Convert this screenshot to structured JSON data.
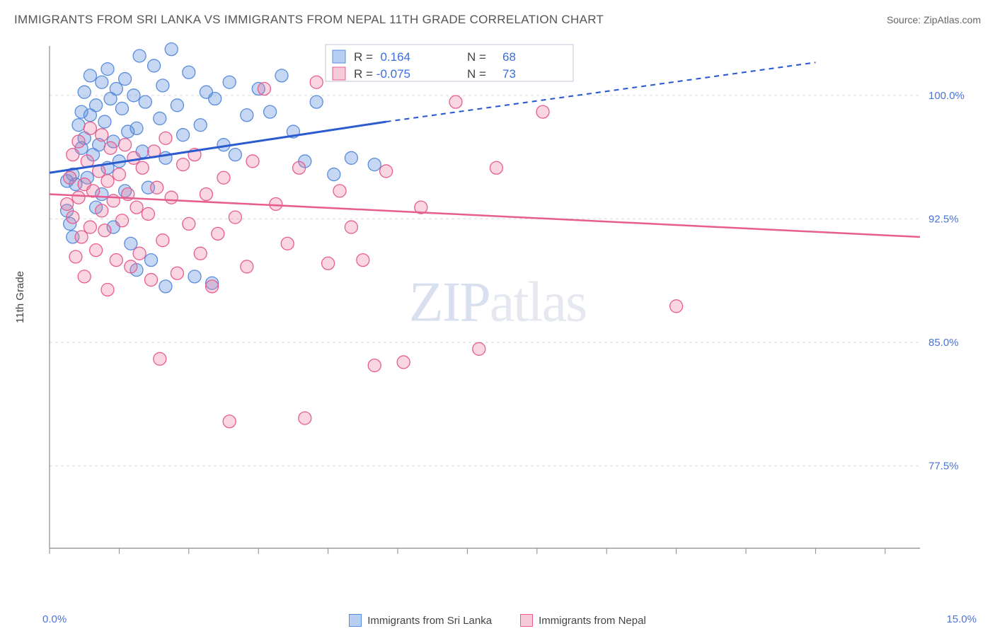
{
  "title": "IMMIGRANTS FROM SRI LANKA VS IMMIGRANTS FROM NEPAL 11TH GRADE CORRELATION CHART",
  "source_label": "Source: ",
  "source_name": "ZipAtlas.com",
  "y_axis_label": "11th Grade",
  "watermark": {
    "part1": "ZIP",
    "part2": "atlas"
  },
  "chart": {
    "type": "scatter-correlation",
    "plot_bg": "#ffffff",
    "grid_color": "#d9d9d9",
    "axis_color": "#888888",
    "tick_color": "#888888",
    "xlim": [
      0.0,
      15.0
    ],
    "ylim": [
      72.5,
      103.0
    ],
    "x_ticks": [
      0.0,
      1.2,
      2.4,
      3.6,
      4.8,
      6.0,
      7.2,
      8.4,
      9.6,
      10.8,
      12.0,
      13.2,
      14.4
    ],
    "y_ticks": [
      77.5,
      85.0,
      92.5,
      100.0
    ],
    "y_tick_labels": [
      "77.5%",
      "85.0%",
      "92.5%",
      "100.0%"
    ],
    "x_end_labels": [
      "0.0%",
      "15.0%"
    ],
    "y_tick_label_color": "#4a74d8",
    "x_tick_label_color": "#4a74d8",
    "series": [
      {
        "name": "Immigrants from Sri Lanka",
        "fill": "rgba(90,140,220,0.35)",
        "stroke": "#5a8cdc",
        "swatch_fill": "rgba(110,160,230,0.5)",
        "swatch_stroke": "#5a8cdc",
        "r_value": "0.164",
        "n_value": "68",
        "trend": {
          "color": "#2b5bcf",
          "width": 3,
          "y_start": 95.3,
          "y_end_solid": 98.4,
          "x_end_solid": 5.8,
          "y_end_dash": 102.0,
          "x_end_dash": 13.2
        },
        "points": [
          [
            0.3,
            94.8
          ],
          [
            0.3,
            93.0
          ],
          [
            0.4,
            95.2
          ],
          [
            0.35,
            92.2
          ],
          [
            0.4,
            91.4
          ],
          [
            0.45,
            94.6
          ],
          [
            0.5,
            98.2
          ],
          [
            0.55,
            99.0
          ],
          [
            0.55,
            96.8
          ],
          [
            0.6,
            100.2
          ],
          [
            0.6,
            97.4
          ],
          [
            0.65,
            95.0
          ],
          [
            0.7,
            101.2
          ],
          [
            0.7,
            98.8
          ],
          [
            0.75,
            96.4
          ],
          [
            0.8,
            99.4
          ],
          [
            0.8,
            93.2
          ],
          [
            0.85,
            97.0
          ],
          [
            0.9,
            100.8
          ],
          [
            0.9,
            94.0
          ],
          [
            0.95,
            98.4
          ],
          [
            1.0,
            101.6
          ],
          [
            1.0,
            95.6
          ],
          [
            1.05,
            99.8
          ],
          [
            1.1,
            97.2
          ],
          [
            1.1,
            92.0
          ],
          [
            1.15,
            100.4
          ],
          [
            1.2,
            96.0
          ],
          [
            1.25,
            99.2
          ],
          [
            1.3,
            101.0
          ],
          [
            1.3,
            94.2
          ],
          [
            1.35,
            97.8
          ],
          [
            1.4,
            91.0
          ],
          [
            1.45,
            100.0
          ],
          [
            1.5,
            98.0
          ],
          [
            1.5,
            89.4
          ],
          [
            1.55,
            102.4
          ],
          [
            1.6,
            96.6
          ],
          [
            1.65,
            99.6
          ],
          [
            1.7,
            94.4
          ],
          [
            1.75,
            90.0
          ],
          [
            1.8,
            101.8
          ],
          [
            1.9,
            98.6
          ],
          [
            1.95,
            100.6
          ],
          [
            2.0,
            96.2
          ],
          [
            2.0,
            88.4
          ],
          [
            2.1,
            102.8
          ],
          [
            2.2,
            99.4
          ],
          [
            2.3,
            97.6
          ],
          [
            2.4,
            101.4
          ],
          [
            2.5,
            89.0
          ],
          [
            2.6,
            98.2
          ],
          [
            2.7,
            100.2
          ],
          [
            2.8,
            88.6
          ],
          [
            2.85,
            99.8
          ],
          [
            3.0,
            97.0
          ],
          [
            3.1,
            100.8
          ],
          [
            3.2,
            96.4
          ],
          [
            3.4,
            98.8
          ],
          [
            3.6,
            100.4
          ],
          [
            3.8,
            99.0
          ],
          [
            4.0,
            101.2
          ],
          [
            4.2,
            97.8
          ],
          [
            4.4,
            96.0
          ],
          [
            4.6,
            99.6
          ],
          [
            4.9,
            95.2
          ],
          [
            5.2,
            96.2
          ],
          [
            5.6,
            95.8
          ]
        ]
      },
      {
        "name": "Immigrants from Nepal",
        "fill": "rgba(235,120,155,0.30)",
        "stroke": "#e75d8f",
        "swatch_fill": "rgba(240,150,180,0.5)",
        "swatch_stroke": "#e75d8f",
        "r_value": "-0.075",
        "n_value": "73",
        "trend": {
          "color": "#e75d8f",
          "width": 2.5,
          "y_start": 94.0,
          "y_end_solid": 91.4,
          "x_end_solid": 15.0
        },
        "points": [
          [
            0.3,
            93.4
          ],
          [
            0.35,
            95.0
          ],
          [
            0.4,
            92.6
          ],
          [
            0.4,
            96.4
          ],
          [
            0.45,
            90.2
          ],
          [
            0.5,
            93.8
          ],
          [
            0.5,
            97.2
          ],
          [
            0.55,
            91.4
          ],
          [
            0.6,
            94.6
          ],
          [
            0.6,
            89.0
          ],
          [
            0.65,
            96.0
          ],
          [
            0.7,
            92.0
          ],
          [
            0.7,
            98.0
          ],
          [
            0.75,
            94.2
          ],
          [
            0.8,
            90.6
          ],
          [
            0.85,
            95.4
          ],
          [
            0.9,
            93.0
          ],
          [
            0.9,
            97.6
          ],
          [
            0.95,
            91.8
          ],
          [
            1.0,
            94.8
          ],
          [
            1.0,
            88.2
          ],
          [
            1.05,
            96.8
          ],
          [
            1.1,
            93.6
          ],
          [
            1.15,
            90.0
          ],
          [
            1.2,
            95.2
          ],
          [
            1.25,
            92.4
          ],
          [
            1.3,
            97.0
          ],
          [
            1.35,
            94.0
          ],
          [
            1.4,
            89.6
          ],
          [
            1.45,
            96.2
          ],
          [
            1.5,
            93.2
          ],
          [
            1.55,
            90.4
          ],
          [
            1.6,
            95.6
          ],
          [
            1.7,
            92.8
          ],
          [
            1.75,
            88.8
          ],
          [
            1.8,
            96.6
          ],
          [
            1.85,
            94.4
          ],
          [
            1.9,
            84.0
          ],
          [
            1.95,
            91.2
          ],
          [
            2.0,
            97.4
          ],
          [
            2.1,
            93.8
          ],
          [
            2.2,
            89.2
          ],
          [
            2.3,
            95.8
          ],
          [
            2.4,
            92.2
          ],
          [
            2.5,
            96.4
          ],
          [
            2.6,
            90.4
          ],
          [
            2.7,
            94.0
          ],
          [
            2.8,
            88.4
          ],
          [
            2.9,
            91.6
          ],
          [
            3.0,
            95.0
          ],
          [
            3.1,
            80.2
          ],
          [
            3.2,
            92.6
          ],
          [
            3.4,
            89.6
          ],
          [
            3.5,
            96.0
          ],
          [
            3.7,
            100.4
          ],
          [
            3.9,
            93.4
          ],
          [
            4.1,
            91.0
          ],
          [
            4.3,
            95.6
          ],
          [
            4.4,
            80.4
          ],
          [
            4.6,
            100.8
          ],
          [
            4.8,
            89.8
          ],
          [
            5.0,
            94.2
          ],
          [
            5.2,
            92.0
          ],
          [
            5.4,
            90.0
          ],
          [
            5.6,
            83.6
          ],
          [
            5.8,
            95.4
          ],
          [
            6.1,
            83.8
          ],
          [
            6.4,
            93.2
          ],
          [
            7.0,
            99.6
          ],
          [
            7.4,
            84.6
          ],
          [
            7.7,
            95.6
          ],
          [
            8.5,
            99.0
          ],
          [
            10.8,
            87.2
          ]
        ]
      }
    ],
    "legend_box": {
      "bg": "#ffffff",
      "border": "#bfc6d4",
      "text_color_label": "#444444",
      "text_color_value": "#3a6de0",
      "label_R": "R =",
      "label_N": "N =",
      "font_size": 17
    },
    "marker_radius": 9,
    "marker_stroke_width": 1.3
  }
}
